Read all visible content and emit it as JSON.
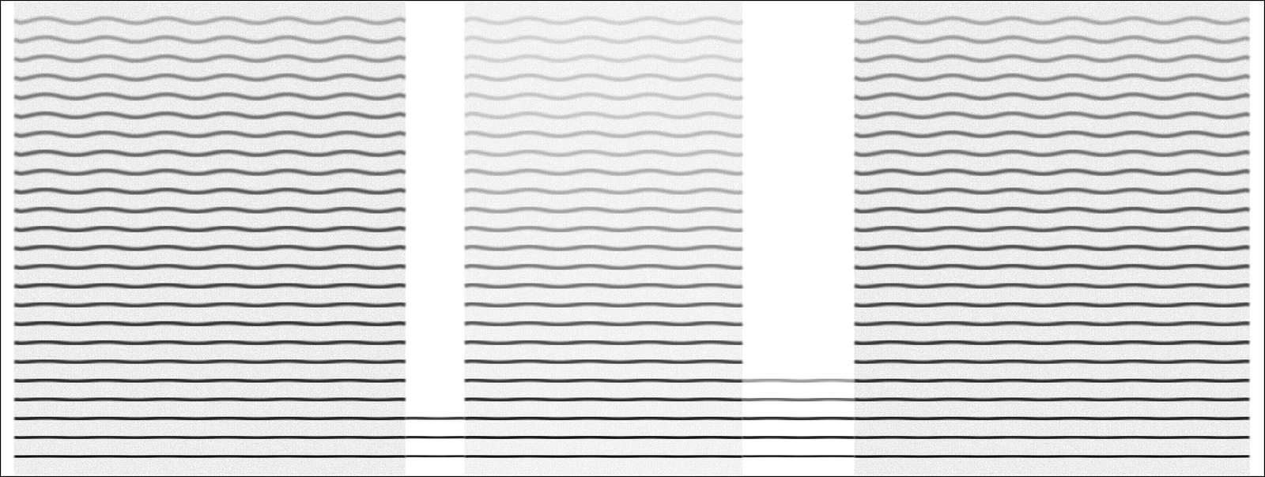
{
  "chart_data": {
    "type": "spectrogram",
    "tick_labels": false,
    "color": "#000000",
    "xlim": [
      0,
      100
    ],
    "ylim": [
      0,
      100
    ],
    "segments": [
      {
        "start": 1,
        "end": 32,
        "noise": 0.35,
        "harmonics": [
          4,
          8,
          12,
          16,
          20,
          24,
          28,
          32,
          36,
          40,
          44,
          48,
          52,
          56,
          60,
          64,
          68,
          72,
          76,
          80,
          84,
          88,
          92,
          96
        ],
        "levels": [
          0.95,
          0.9,
          0.9,
          0.85,
          0.85,
          0.8,
          0.8,
          0.8,
          0.75,
          0.75,
          0.7,
          0.7,
          0.7,
          0.65,
          0.65,
          0.6,
          0.6,
          0.55,
          0.55,
          0.5,
          0.45,
          0.4,
          0.35,
          0.3
        ]
      },
      {
        "start": 32,
        "end": 36.7,
        "noise": 0,
        "harmonics": [
          4,
          8,
          12
        ],
        "levels": [
          0.9,
          0.9,
          0.8
        ]
      },
      {
        "start": 36.7,
        "end": 58.7,
        "noise": 0.25,
        "harmonics": [
          4,
          8,
          12,
          16,
          20,
          24,
          28,
          32,
          36,
          40,
          44,
          48,
          52,
          56,
          60,
          64,
          68,
          72,
          76,
          80,
          84,
          88,
          92,
          96
        ],
        "levels": [
          0.95,
          0.95,
          0.9,
          0.85,
          0.8,
          0.75,
          0.7,
          0.65,
          0.6,
          0.55,
          0.5,
          0.45,
          0.4,
          0.35,
          0.3,
          0.3,
          0.25,
          0.25,
          0.2,
          0.2,
          0.2,
          0.15,
          0.15,
          0.15
        ]
      },
      {
        "start": 58.7,
        "end": 67.6,
        "noise": 0,
        "harmonics": [
          4,
          8,
          12,
          16,
          20
        ],
        "levels": [
          0.9,
          0.9,
          0.85,
          0.6,
          0.4
        ]
      },
      {
        "start": 67.6,
        "end": 98.9,
        "noise": 0.35,
        "harmonics": [
          4,
          8,
          12,
          16,
          20,
          24,
          28,
          32,
          36,
          40,
          44,
          48,
          52,
          56,
          60,
          64,
          68,
          72,
          76,
          80,
          84,
          88,
          92,
          96
        ],
        "levels": [
          0.95,
          0.9,
          0.9,
          0.85,
          0.85,
          0.8,
          0.8,
          0.75,
          0.75,
          0.7,
          0.7,
          0.7,
          0.65,
          0.65,
          0.6,
          0.6,
          0.55,
          0.55,
          0.5,
          0.5,
          0.45,
          0.4,
          0.35,
          0.3
        ]
      }
    ]
  }
}
